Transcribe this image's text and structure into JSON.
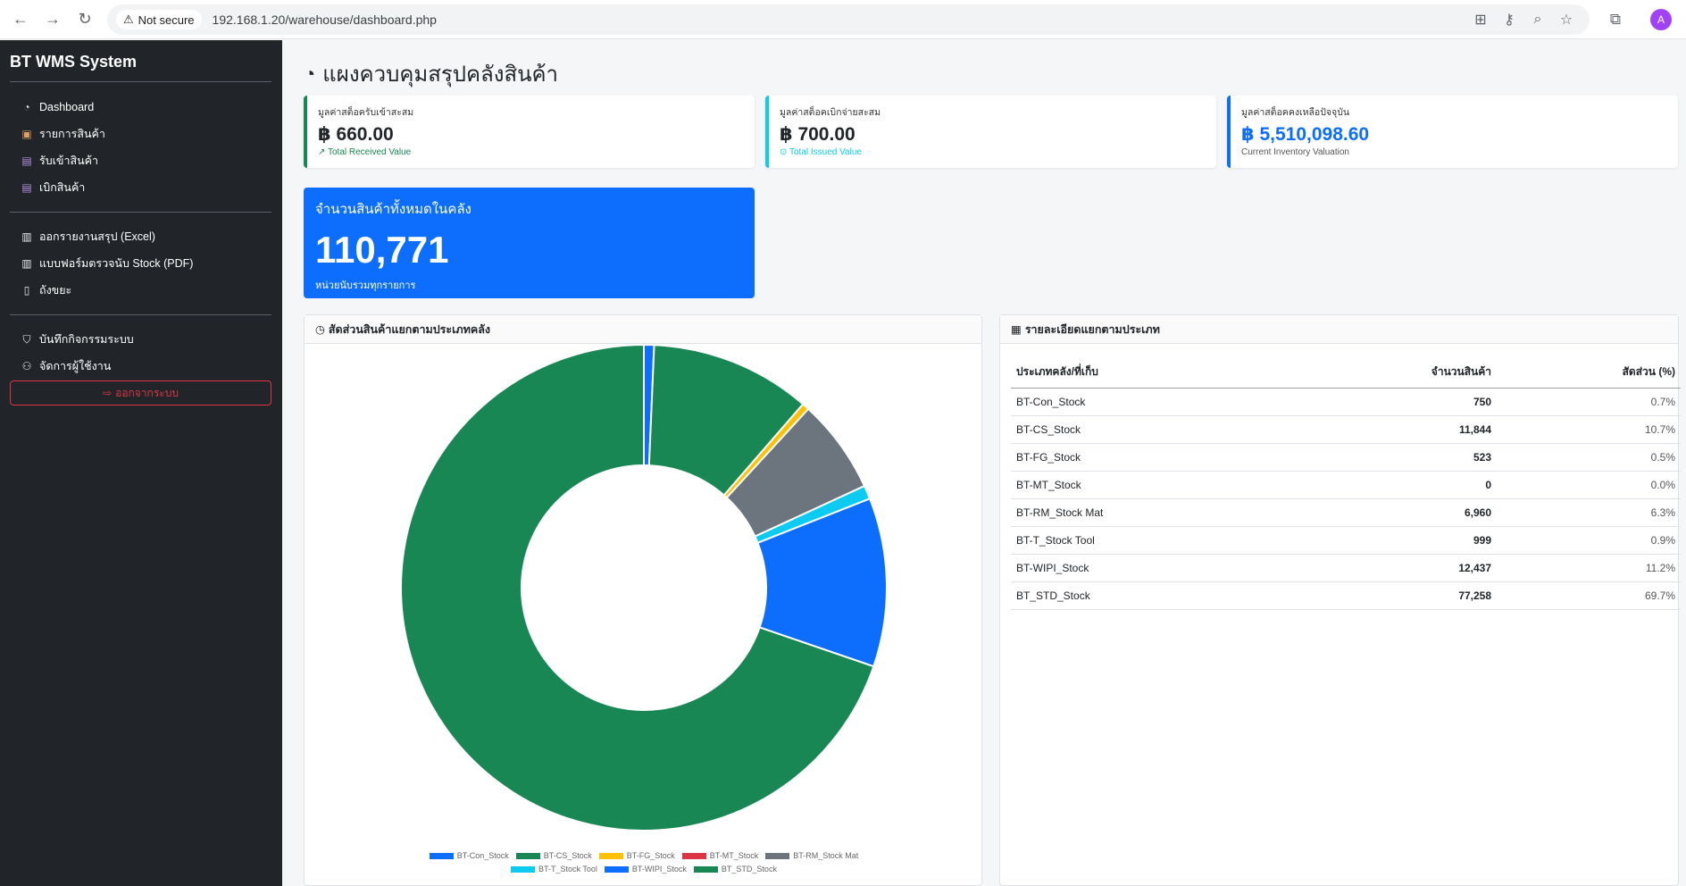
{
  "browser": {
    "security_label": "Not secure",
    "url": "192.168.1.20/warehouse/dashboard.php",
    "avatar_initial": "A"
  },
  "sidebar": {
    "brand": "BT WMS System",
    "items": [
      {
        "label": "Dashboard",
        "icon": "gauge-icon"
      },
      {
        "label": "รายการสินค้า",
        "icon": "box-icon"
      },
      {
        "label": "รับเข้าสินค้า",
        "icon": "box-in-icon"
      },
      {
        "label": "เบิกสินค้า",
        "icon": "box-out-icon"
      },
      {
        "label": "ออกรายงานสรุป (Excel)",
        "icon": "excel-file-icon"
      },
      {
        "label": "แบบฟอร์มตรวจนับ Stock (PDF)",
        "icon": "pdf-file-icon"
      },
      {
        "label": "ถังขยะ",
        "icon": "trash-icon"
      },
      {
        "label": "บันทึกกิจกรรมระบบ",
        "icon": "shield-icon"
      },
      {
        "label": "จัดการผู้ใช้งาน",
        "icon": "users-icon"
      }
    ],
    "logout_label": "ออกจากระบบ"
  },
  "main": {
    "title": "แผงควบคุมสรุปคลังสินค้า",
    "stats": [
      {
        "label": "มูลค่าสต็อครับเข้าสะสม",
        "value": "฿ 660.00",
        "sub": "↗ Total Received Value",
        "accent": "#198754"
      },
      {
        "label": "มูลค่าสต็อคเบิกจ่ายสะสม",
        "value": "฿ 700.00",
        "sub": "⊙ Total Issued Value",
        "accent": "#0dcaf0"
      },
      {
        "label": "มูลค่าสต็อคคงเหลือปัจจุบัน",
        "value": "฿ 5,510,098.60",
        "sub": "Current Inventory Valuation",
        "accent": "#0d6efd"
      }
    ],
    "total": {
      "label": "จำนวนสินค้าทั้งหมดในคลัง",
      "value": "110,771",
      "sub": "หน่วยนับรวมทุกรายการ"
    },
    "chart_panel_title": "สัดส่วนสินค้าแยกตามประเภทคลัง",
    "table_panel_title": "รายละเอียดแยกตามประเภท",
    "table": {
      "headers": [
        "ประเภทคลัง/ที่เก็บ",
        "จำนวนสินค้า",
        "สัดส่วน (%)"
      ],
      "rows": [
        [
          "BT-Con_Stock",
          "750",
          "0.7%"
        ],
        [
          "BT-CS_Stock",
          "11,844",
          "10.7%"
        ],
        [
          "BT-FG_Stock",
          "523",
          "0.5%"
        ],
        [
          "BT-MT_Stock",
          "0",
          "0.0%"
        ],
        [
          "BT-RM_Stock Mat",
          "6,960",
          "6.3%"
        ],
        [
          "BT-T_Stock Tool",
          "999",
          "0.9%"
        ],
        [
          "BT-WIPI_Stock",
          "12,437",
          "11.2%"
        ],
        [
          "BT_STD_Stock",
          "77,258",
          "69.7%"
        ]
      ]
    }
  },
  "chart_data": {
    "type": "pie",
    "variant": "doughnut",
    "categories": [
      "BT-Con_Stock",
      "BT-CS_Stock",
      "BT-FG_Stock",
      "BT-MT_Stock",
      "BT-RM_Stock Mat",
      "BT-T_Stock Tool",
      "BT-WIPI_Stock",
      "BT_STD_Stock"
    ],
    "values": [
      750,
      11844,
      523,
      0,
      6960,
      999,
      12437,
      77258
    ],
    "colors": [
      "#0d6efd",
      "#198754",
      "#ffc107",
      "#dc3545",
      "#6c757d",
      "#0dcaf0",
      "#0d6efd",
      "#198754"
    ],
    "legend_position": "bottom"
  }
}
